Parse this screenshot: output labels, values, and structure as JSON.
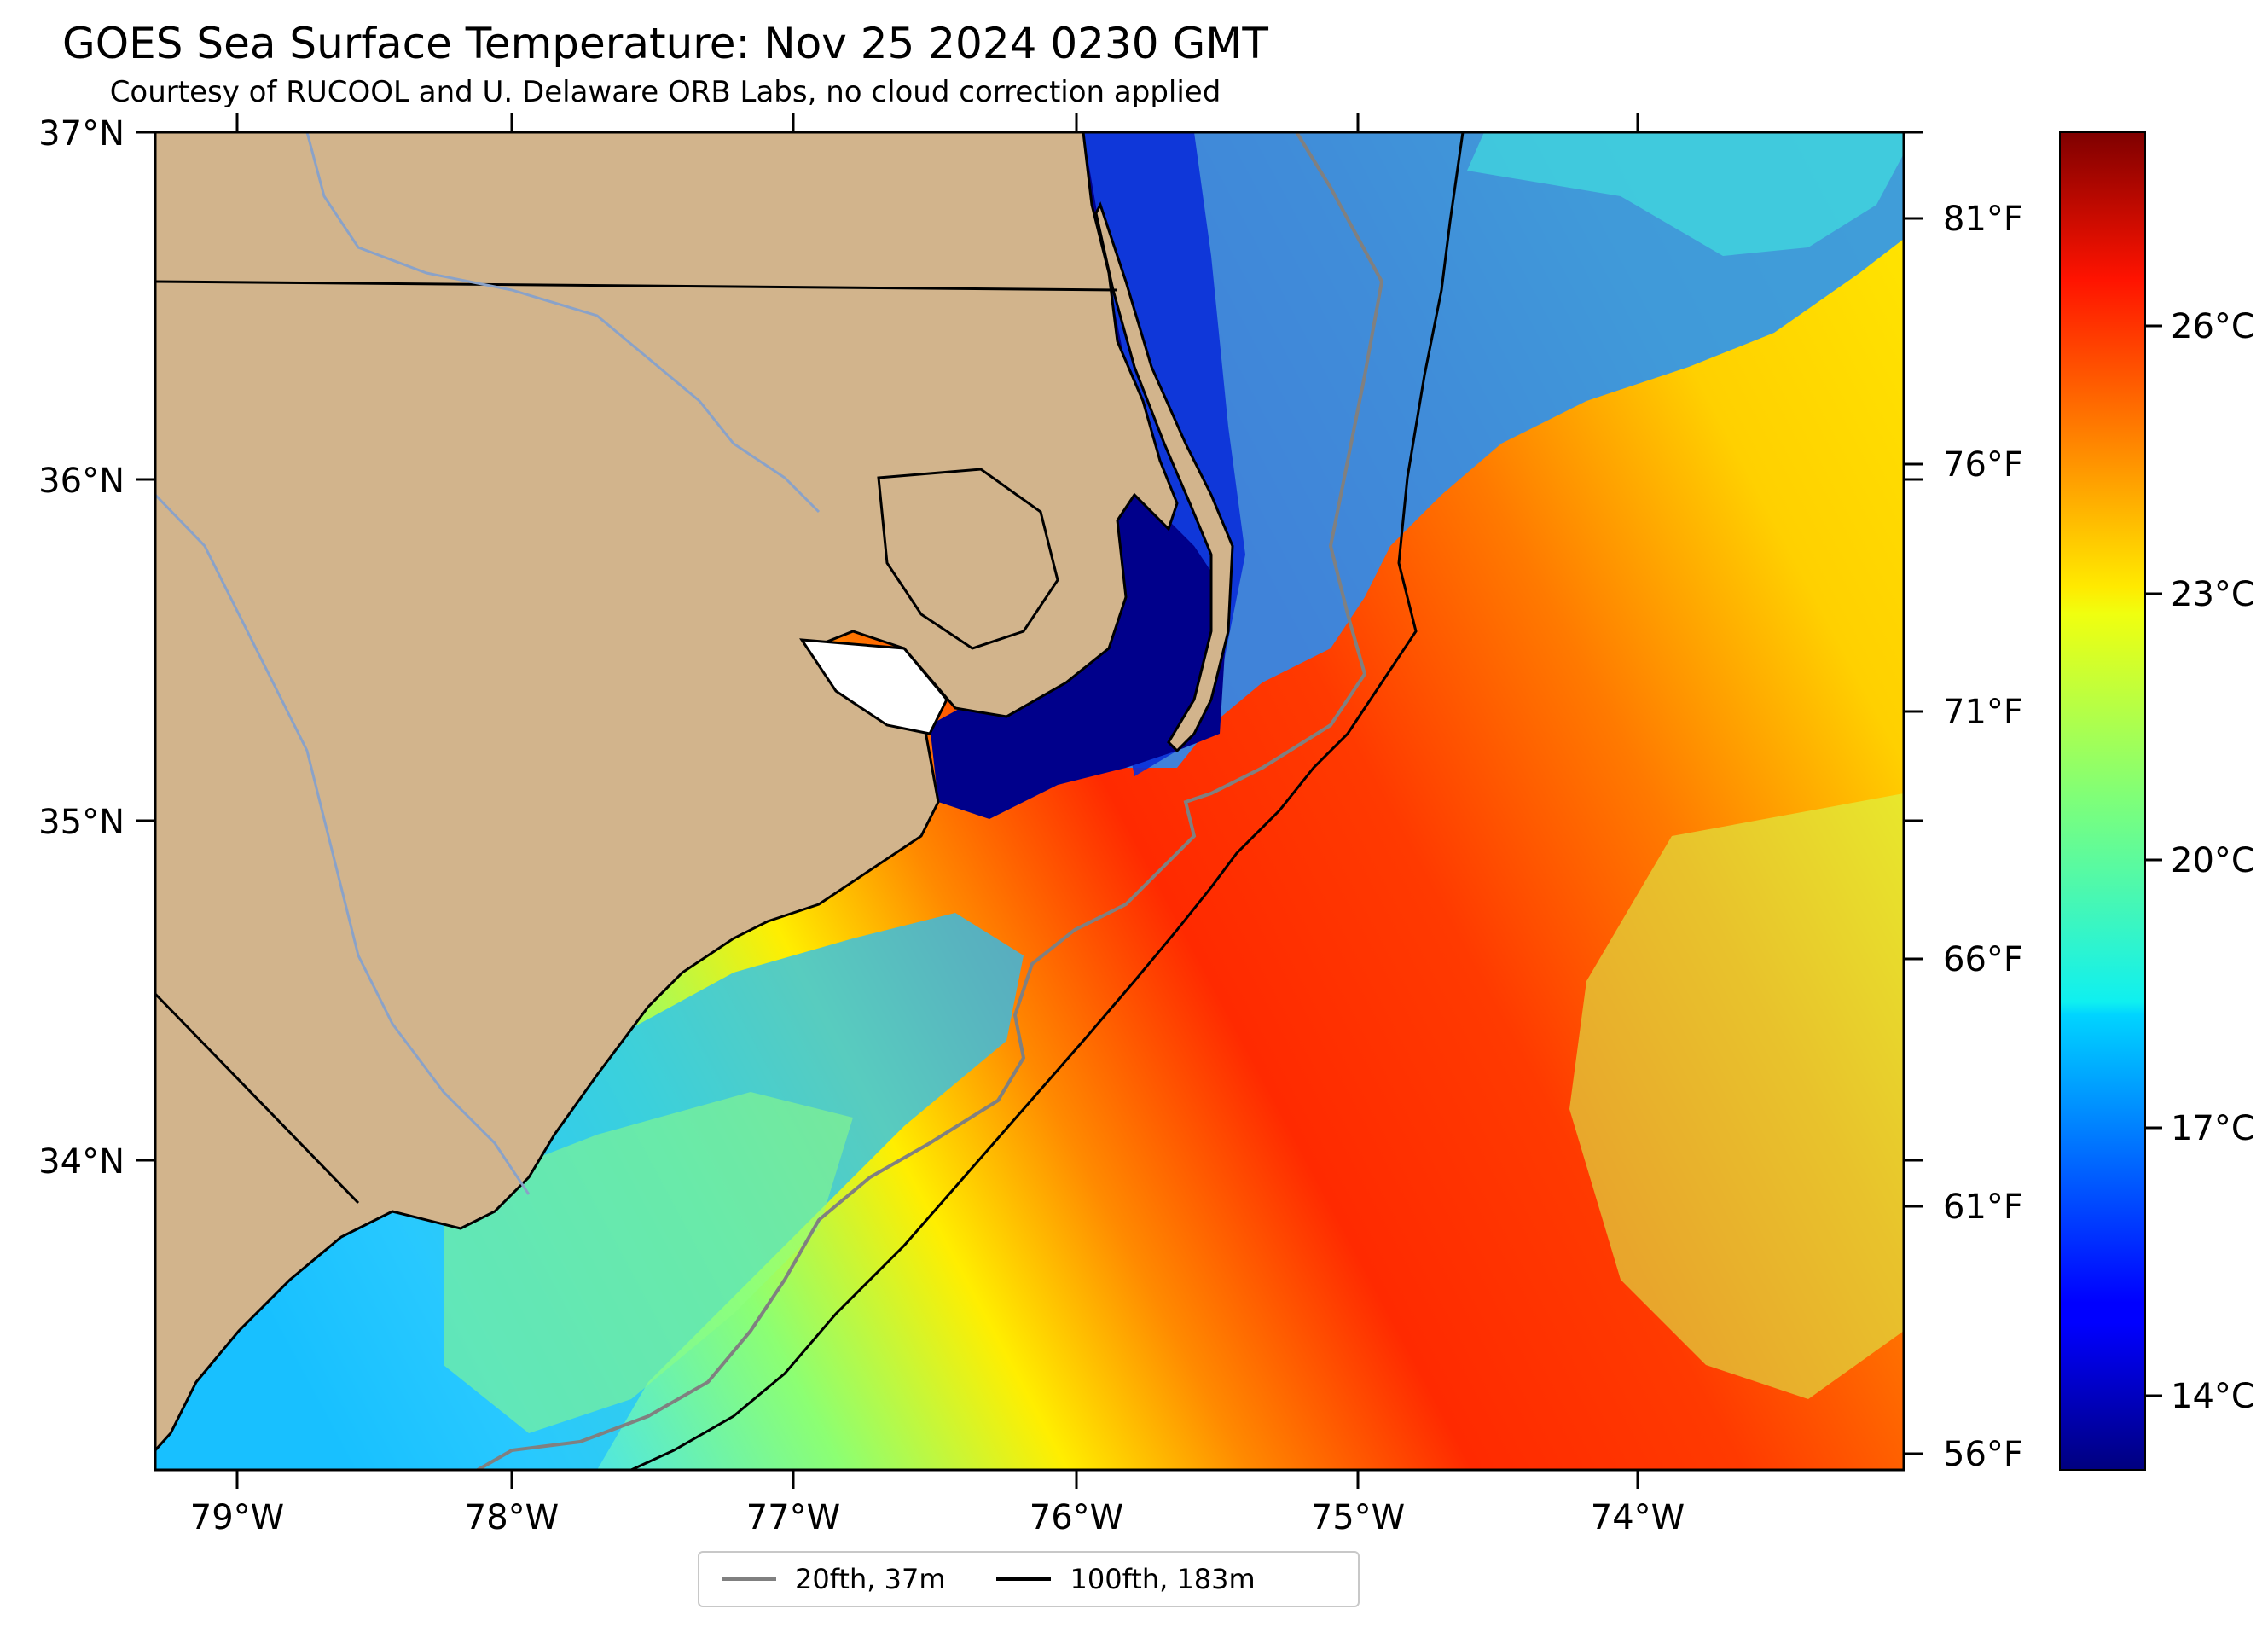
{
  "title": "GOES Sea Surface Temperature: Nov 25 2024 0230 GMT",
  "subtitle": "Courtesy of RUCOOL and U. Delaware ORB Labs, no cloud correction applied",
  "map": {
    "lat_range": [
      33.1,
      37.0
    ],
    "lon_range": [
      -79.3,
      -73.1
    ],
    "lat_ticks": [
      "37°N",
      "36°N",
      "35°N",
      "34°N"
    ],
    "lon_ticks": [
      "79°W",
      "78°W",
      "77°W",
      "76°W",
      "75°W",
      "74°W"
    ],
    "land_color": "#d2b48c",
    "ocean_cold_color": "#00008b",
    "gulf_stream_color": "#ff2a00",
    "inner_shelf_color": "#00bfff"
  },
  "legend": {
    "items": [
      {
        "label": "20fth, 37m",
        "color": "#808080"
      },
      {
        "label": "100fth, 183m",
        "color": "#000000"
      }
    ]
  },
  "colorbar": {
    "colormap": "jet",
    "celsius_range": [
      12.8,
      28.5
    ],
    "celsius_labels": [
      "26°C",
      "23°C",
      "20°C",
      "17°C",
      "14°C"
    ],
    "fahrenheit_labels": [
      "81°F",
      "76°F",
      "71°F",
      "66°F",
      "61°F",
      "56°F"
    ]
  }
}
